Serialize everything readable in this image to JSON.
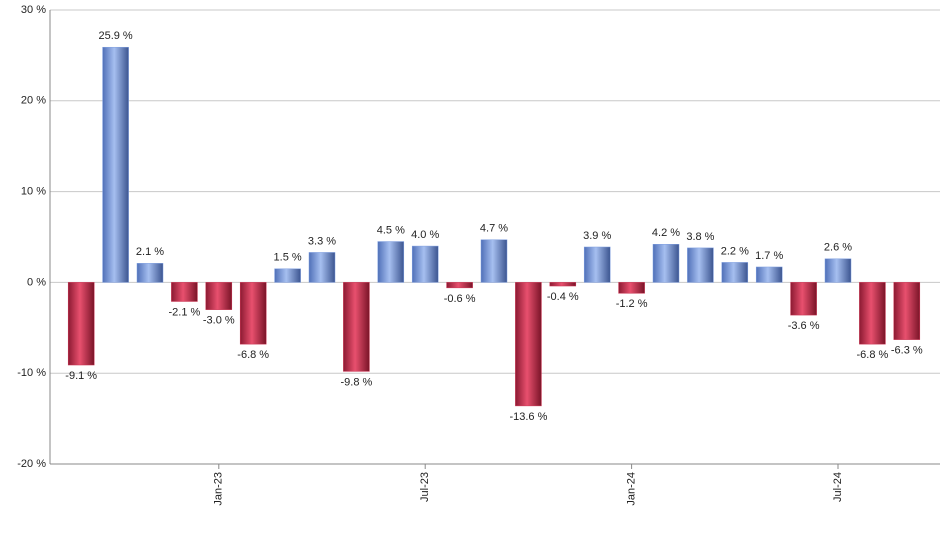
{
  "chart_data": {
    "type": "bar",
    "categories": [
      null,
      null,
      null,
      null,
      "Jan-23",
      null,
      null,
      null,
      null,
      null,
      "Jul-23",
      null,
      null,
      null,
      null,
      null,
      "Jan-24",
      null,
      null,
      null,
      null,
      null,
      "Jul-24",
      null,
      null
    ],
    "values": [
      -9.1,
      25.9,
      2.1,
      -2.1,
      -3.0,
      -6.8,
      1.5,
      3.3,
      -9.8,
      4.5,
      4.0,
      -0.6,
      4.7,
      -13.6,
      -0.4,
      3.9,
      -1.2,
      4.2,
      3.8,
      2.2,
      1.7,
      -3.6,
      2.6,
      -6.8,
      -6.3
    ],
    "value_labels": [
      "-9.1 %",
      "25.9 %",
      "2.1 %",
      "-2.1 %",
      "-3.0 %",
      "-6.8 %",
      "1.5 %",
      "3.3 %",
      "-9.8 %",
      "4.5 %",
      "4.0 %",
      "-0.6 %",
      "4.7 %",
      "-13.6 %",
      "-0.4 %",
      "3.9 %",
      "-1.2 %",
      "4.2 %",
      "3.8 %",
      "2.2 %",
      "1.7 %",
      "-3.6 %",
      "2.6 %",
      "-6.8 %",
      "-6.3 %"
    ],
    "positive_color": "#7f9fe0",
    "negative_color": "#c9304f",
    "ylim": [
      -20,
      30
    ],
    "yticks": [
      {
        "value": -20,
        "label": "-20 %"
      },
      {
        "value": -10,
        "label": "-10 %"
      },
      {
        "value": 0,
        "label": "0 %"
      },
      {
        "value": 10,
        "label": "10 %"
      },
      {
        "value": 20,
        "label": "20 %"
      },
      {
        "value": 30,
        "label": "30 %"
      }
    ],
    "grid": true
  }
}
